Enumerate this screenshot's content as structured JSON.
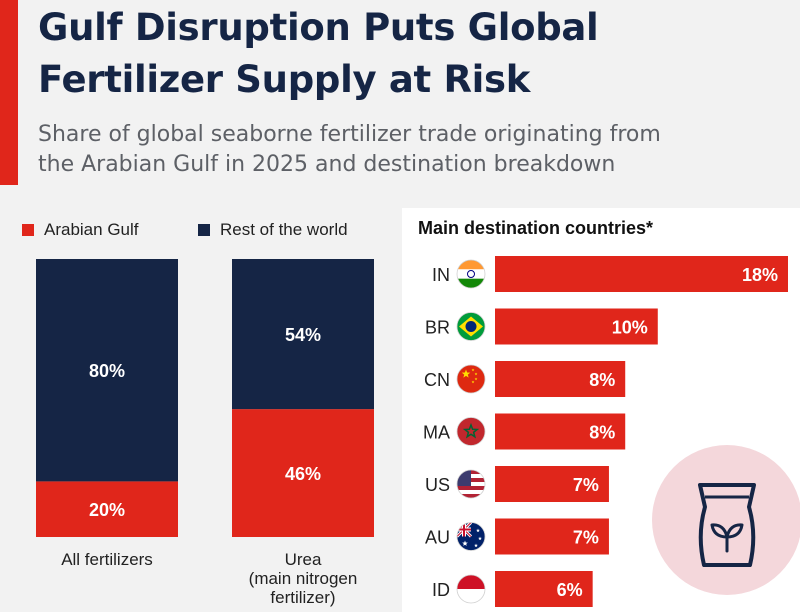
{
  "header": {
    "title_line1": "Gulf Disruption Puts Global",
    "title_line2": "Fertilizer Supply at Risk",
    "subtitle_line1": "Share of global seaborne fertilizer trade originating from",
    "subtitle_line2": "the Arabian Gulf in 2025 and destination breakdown"
  },
  "colors": {
    "accent": "#e0261b",
    "navy": "#152545",
    "red": "#e0261b"
  },
  "legend": {
    "gulf": "Arabian Gulf",
    "rest": "Rest of the world"
  },
  "right_panel": {
    "title": "Main destination countries*",
    "icon": "fertilizer-bag-icon"
  },
  "chart_data": [
    {
      "type": "bar",
      "stacked": true,
      "categories": [
        "All fertilizers",
        "Urea\n(main nitrogen\nfertilizer)"
      ],
      "series": [
        {
          "name": "Arabian Gulf",
          "color": "#e0261b",
          "values": [
            20,
            46
          ]
        },
        {
          "name": "Rest of the world",
          "color": "#152545",
          "values": [
            80,
            54
          ]
        }
      ],
      "unit": "%",
      "ylim": [
        0,
        100
      ]
    },
    {
      "type": "bar",
      "orientation": "horizontal",
      "title": "Main destination countries*",
      "categories": [
        "IN",
        "BR",
        "CN",
        "MA",
        "US",
        "AU",
        "ID"
      ],
      "flags": [
        "india-flag-icon",
        "brazil-flag-icon",
        "china-flag-icon",
        "morocco-flag-icon",
        "usa-flag-icon",
        "australia-flag-icon",
        "indonesia-flag-icon"
      ],
      "values": [
        18,
        10,
        8,
        8,
        7,
        7,
        6
      ],
      "unit": "%",
      "xlim": [
        0,
        18
      ]
    }
  ]
}
